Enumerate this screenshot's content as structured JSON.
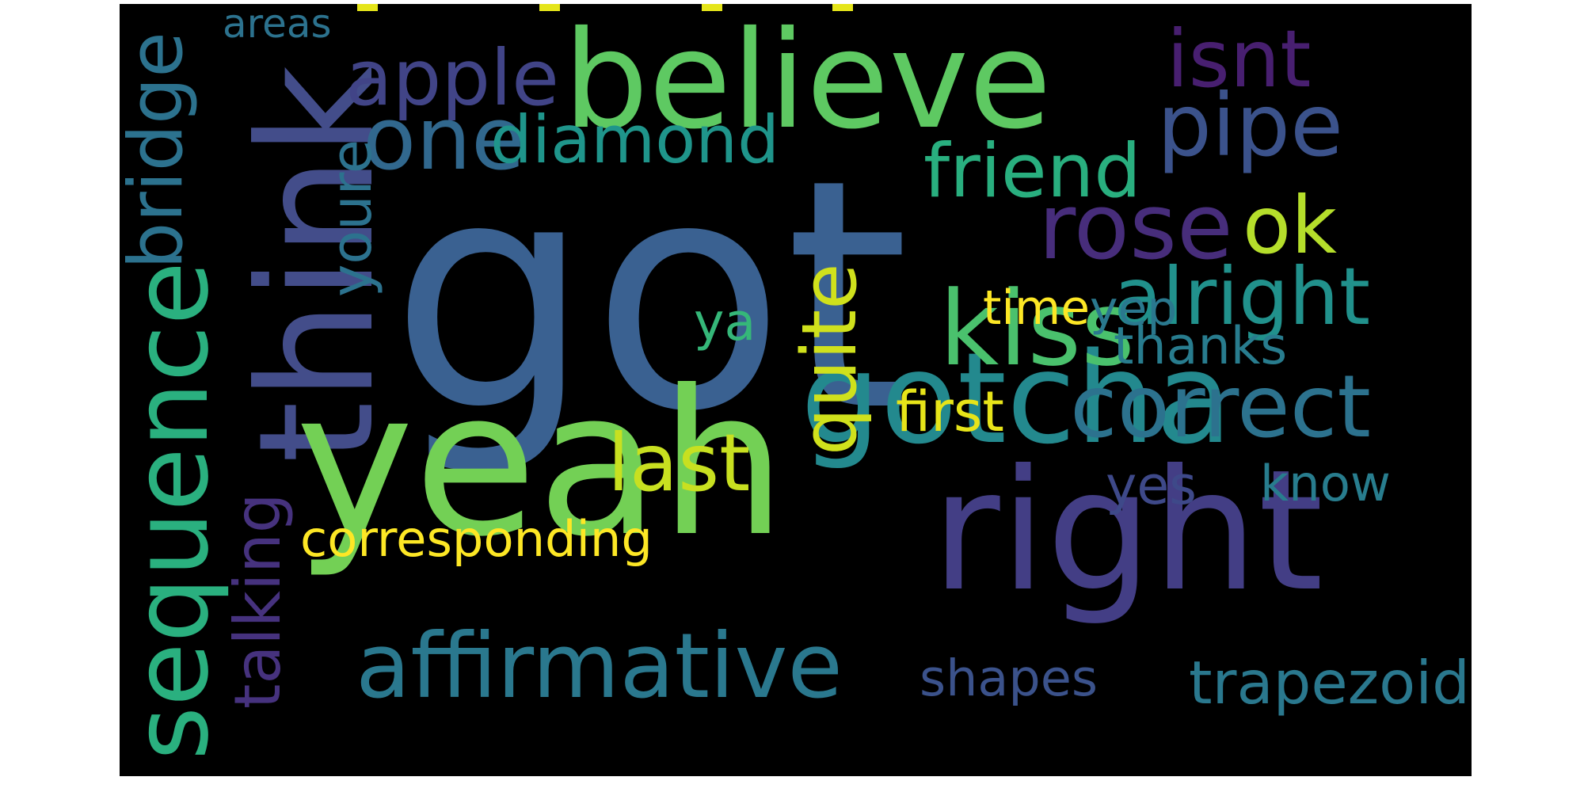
{
  "words": [
    {
      "text": "got",
      "color": "#3a6191"
    },
    {
      "text": "believe",
      "color": "#5ec962"
    },
    {
      "text": "think",
      "color": "#434d8a"
    },
    {
      "text": "gotcha",
      "color": "#23898e"
    },
    {
      "text": "yeah",
      "color": "#73d055"
    },
    {
      "text": "right",
      "color": "#433e85"
    },
    {
      "text": "affirmative",
      "color": "#2a788e"
    },
    {
      "text": "sequence",
      "color": "#2ab07f"
    },
    {
      "text": "bridge",
      "color": "#2c728e"
    },
    {
      "text": "apple",
      "color": "#414487"
    },
    {
      "text": "one",
      "color": "#31688e"
    },
    {
      "text": "diamond",
      "color": "#1f958b"
    },
    {
      "text": "isnt",
      "color": "#481f70"
    },
    {
      "text": "pipe",
      "color": "#3b528b"
    },
    {
      "text": "friend",
      "color": "#29af7f"
    },
    {
      "text": "rose",
      "color": "#472d7b"
    },
    {
      "text": "ok",
      "color": "#b5de2b"
    },
    {
      "text": "kiss",
      "color": "#4ac16d"
    },
    {
      "text": "alright",
      "color": "#21918c"
    },
    {
      "text": "correct",
      "color": "#2c728e"
    },
    {
      "text": "quite",
      "color": "#d0e11c"
    },
    {
      "text": "last",
      "color": "#c8e020"
    },
    {
      "text": "youre",
      "color": "#2c728e"
    },
    {
      "text": "areas",
      "color": "#2c728e"
    },
    {
      "text": "time",
      "color": "#fde725"
    },
    {
      "text": "yep",
      "color": "#2a788e"
    },
    {
      "text": "ya",
      "color": "#35b779"
    },
    {
      "text": "thanks",
      "color": "#287c8e"
    },
    {
      "text": "first",
      "color": "#e7e419"
    },
    {
      "text": "yes",
      "color": "#3e4989"
    },
    {
      "text": "know",
      "color": "#287d8e"
    },
    {
      "text": "corresponding",
      "color": "#fde725"
    },
    {
      "text": "talking",
      "color": "#46327e"
    },
    {
      "text": "shapes",
      "color": "#3b528b"
    },
    {
      "text": "trapezoid",
      "color": "#2a788e"
    }
  ]
}
